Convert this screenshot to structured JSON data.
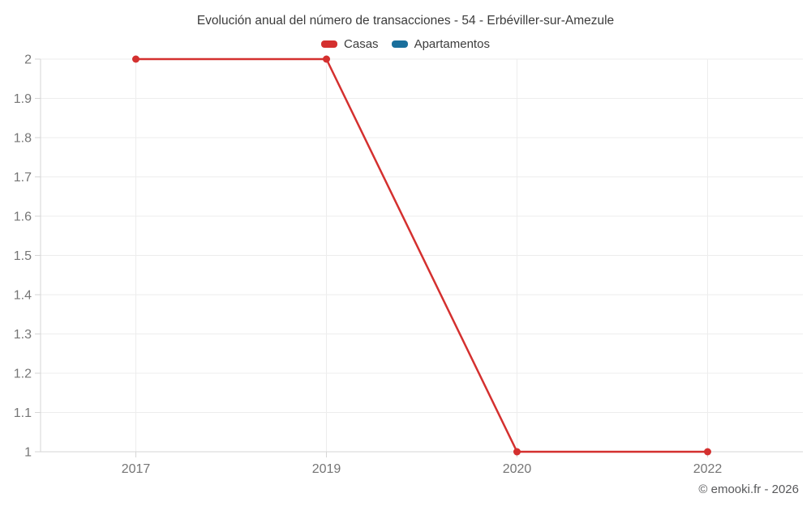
{
  "chart": {
    "copyright": "© emooki.fr - 2026"
  },
  "legend": {
    "items": [
      {
        "label": "Casas",
        "color": "#d4302f"
      },
      {
        "label": "Apartamentos",
        "color": "#1a6f9c"
      }
    ]
  },
  "chart_data": {
    "type": "line",
    "title": "Evolución anual del número de transacciones - 54 - Erbéviller-sur-Amezule",
    "categories": [
      "2017",
      "2019",
      "2020",
      "2022"
    ],
    "series": [
      {
        "name": "Casas",
        "color": "#d4302f",
        "values": [
          2,
          2,
          1,
          1
        ]
      },
      {
        "name": "Apartamentos",
        "color": "#1a6f9c",
        "values": []
      }
    ],
    "xlabel": "",
    "ylabel": "",
    "ylim": [
      1,
      2
    ],
    "ytick_step": 0.1,
    "grid": true,
    "legend_position": "top",
    "colors": {
      "gridline": "#ededed",
      "axis": "#d6d6d6",
      "axis_label": "#757575",
      "title_text": "#3c3c3c"
    }
  }
}
